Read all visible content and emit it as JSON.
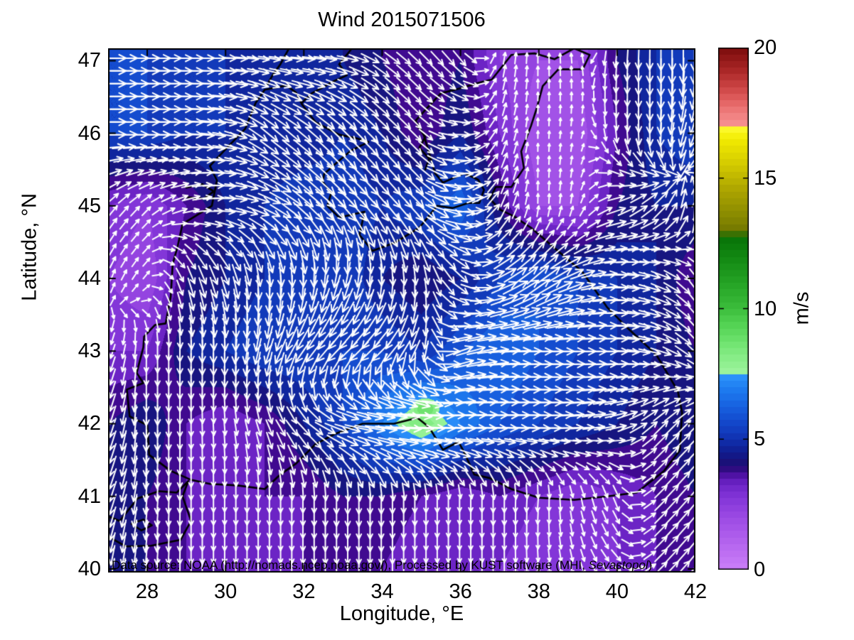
{
  "title": "Wind 2015071506",
  "xlabel": "Longitude, °E",
  "ylabel": "Latitude, °N",
  "annotation": {
    "prefix": "Data source: NOAA (http://nomads.ncep.noaa.gov/), Processed by KUST software (MHI, ",
    "italic": "Sevastopol",
    "suffix": ")"
  },
  "axes": {
    "xticks": [
      28,
      30,
      32,
      34,
      36,
      38,
      40,
      42
    ],
    "yticks": [
      40,
      41,
      42,
      43,
      44,
      45,
      46,
      47
    ],
    "xlim": [
      27,
      42
    ],
    "ylim": [
      39.95,
      47.17
    ],
    "grid": false
  },
  "colorbar": {
    "label": "m/s",
    "ticks": [
      0,
      5,
      10,
      15,
      20
    ],
    "min": 0,
    "max": 20
  },
  "chart_data": {
    "type": "heatmap",
    "subtype": "wind-speed-filled-contours-with-quiver-arrows",
    "title": "Wind 2015071506",
    "xlabel": "Longitude, °E",
    "ylabel": "Latitude, °N",
    "units": "m/s",
    "xlim": [
      27,
      42
    ],
    "ylim": [
      39.95,
      47.17
    ],
    "value_range": [
      0,
      20
    ],
    "contour_step": 0.5,
    "lon": [
      27,
      28,
      29,
      30,
      31,
      32,
      33,
      34,
      35,
      36,
      37,
      38,
      39,
      40,
      41,
      42
    ],
    "lat": [
      47,
      46,
      45,
      44,
      43,
      42,
      41,
      40
    ],
    "speed_ms": [
      [
        5.5,
        5.5,
        5.0,
        5.0,
        4.5,
        5.0,
        4.5,
        4.0,
        3.5,
        4.0,
        2.5,
        2.0,
        2.0,
        4.0,
        5.0,
        5.5
      ],
      [
        5.5,
        5.5,
        5.0,
        5.0,
        4.5,
        4.5,
        5.0,
        4.5,
        3.5,
        4.5,
        3.0,
        1.5,
        1.5,
        3.5,
        5.0,
        5.5
      ],
      [
        3.0,
        2.5,
        3.5,
        4.5,
        5.0,
        5.5,
        5.5,
        5.0,
        5.5,
        6.5,
        4.0,
        2.0,
        2.0,
        4.0,
        4.5,
        4.5
      ],
      [
        2.5,
        2.0,
        4.0,
        4.5,
        5.0,
        5.0,
        5.5,
        4.5,
        4.0,
        4.5,
        5.5,
        6.0,
        5.5,
        5.0,
        4.5,
        3.5
      ],
      [
        3.0,
        3.0,
        4.5,
        5.0,
        5.5,
        5.5,
        5.5,
        5.5,
        5.0,
        6.0,
        6.5,
        6.0,
        5.5,
        5.0,
        4.5,
        4.0
      ],
      [
        4.0,
        4.5,
        3.5,
        3.0,
        3.5,
        4.5,
        5.5,
        7.0,
        8.5,
        7.0,
        6.0,
        5.5,
        5.0,
        4.5,
        4.0,
        4.5
      ],
      [
        4.5,
        4.0,
        3.5,
        3.0,
        3.5,
        3.5,
        4.0,
        4.0,
        3.5,
        3.0,
        3.5,
        3.0,
        2.5,
        3.0,
        3.5,
        4.0
      ],
      [
        4.0,
        4.0,
        3.5,
        3.5,
        3.0,
        3.5,
        3.5,
        3.5,
        3.0,
        3.0,
        3.0,
        2.5,
        2.5,
        3.0,
        3.5,
        4.0
      ]
    ],
    "dir_toward_deg": [
      [
        90,
        90,
        90,
        90,
        100,
        95,
        100,
        125,
        135,
        140,
        10,
        0,
        355,
        185,
        180,
        180
      ],
      [
        90,
        90,
        90,
        100,
        130,
        130,
        135,
        135,
        135,
        90,
        20,
        0,
        10,
        175,
        180,
        200
      ],
      [
        40,
        45,
        70,
        90,
        110,
        130,
        135,
        140,
        135,
        95,
        25,
        0,
        10,
        70,
        45,
        0
      ],
      [
        20,
        40,
        160,
        160,
        175,
        180,
        195,
        180,
        175,
        135,
        65,
        50,
        70,
        90,
        110,
        145
      ],
      [
        200,
        180,
        180,
        180,
        195,
        215,
        225,
        225,
        200,
        70,
        85,
        90,
        90,
        90,
        105,
        135
      ],
      [
        200,
        180,
        180,
        175,
        160,
        135,
        105,
        95,
        90,
        90,
        90,
        90,
        85,
        75,
        45,
        45
      ],
      [
        200,
        185,
        180,
        180,
        180,
        180,
        180,
        180,
        180,
        180,
        180,
        185,
        170,
        160,
        45,
        40
      ],
      [
        190,
        185,
        180,
        180,
        180,
        180,
        180,
        180,
        180,
        180,
        180,
        175,
        165,
        135,
        45,
        40
      ]
    ],
    "speed_maximum": {
      "lon": 35.1,
      "lat": 42.2,
      "value_ms": 9
    },
    "colormap_stops": [
      [
        0.0,
        "#CB80F8"
      ],
      [
        0.5,
        "#C173F4"
      ],
      [
        1.0,
        "#B566EF"
      ],
      [
        1.5,
        "#A958EA"
      ],
      [
        2.0,
        "#9C4BE4"
      ],
      [
        2.5,
        "#8C3DDD"
      ],
      [
        3.0,
        "#7A2ED2"
      ],
      [
        3.5,
        "#5F1BB8"
      ],
      [
        3.75,
        "#400A90"
      ],
      [
        4.0,
        "#1E0E72"
      ],
      [
        4.5,
        "#101C8E"
      ],
      [
        5.0,
        "#1130AE"
      ],
      [
        5.5,
        "#1343C6"
      ],
      [
        6.0,
        "#1556D8"
      ],
      [
        6.5,
        "#1A6BE6"
      ],
      [
        7.0,
        "#1F80F2"
      ],
      [
        7.45,
        "#2E95FC"
      ],
      [
        7.5,
        "#A0F5A0"
      ],
      [
        8.0,
        "#8DEF8D"
      ],
      [
        8.5,
        "#79E879"
      ],
      [
        9.0,
        "#63DC63"
      ],
      [
        9.5,
        "#50D050"
      ],
      [
        10.0,
        "#3CBE3C"
      ],
      [
        11.0,
        "#25A325"
      ],
      [
        12.0,
        "#128812"
      ],
      [
        12.85,
        "#067006"
      ],
      [
        12.9,
        "#6F7300"
      ],
      [
        13.5,
        "#878900"
      ],
      [
        14.5,
        "#ABA300"
      ],
      [
        15.5,
        "#D2C900"
      ],
      [
        16.5,
        "#F2EC00"
      ],
      [
        16.95,
        "#FDFB30"
      ],
      [
        17.0,
        "#F79292"
      ],
      [
        17.5,
        "#F07E7E"
      ],
      [
        18.0,
        "#E26060"
      ],
      [
        18.5,
        "#CC4444"
      ],
      [
        19.0,
        "#B12C2C"
      ],
      [
        19.5,
        "#971B1B"
      ],
      [
        20.0,
        "#7C0D0D"
      ]
    ],
    "arrow_color": "#FFFFFF",
    "coastline_color": "#000000",
    "coastlines": [
      [
        [
          29.1,
          41.23
        ],
        [
          28.6,
          41.35
        ],
        [
          28.05,
          41.57
        ],
        [
          28.0,
          41.98
        ],
        [
          27.55,
          42.1
        ],
        [
          27.48,
          42.47
        ],
        [
          27.9,
          42.56
        ],
        [
          27.73,
          42.7
        ],
        [
          27.9,
          43.05
        ],
        [
          27.92,
          43.2
        ],
        [
          28.2,
          43.36
        ],
        [
          28.47,
          43.38
        ],
        [
          28.6,
          43.75
        ],
        [
          28.65,
          44.2
        ],
        [
          28.78,
          44.45
        ],
        [
          28.9,
          44.75
        ],
        [
          29.35,
          44.9
        ],
        [
          29.65,
          45.0
        ],
        [
          29.78,
          45.35
        ],
        [
          29.6,
          45.55
        ],
        [
          30.0,
          45.78
        ],
        [
          30.5,
          46.06
        ],
        [
          30.77,
          46.42
        ],
        [
          31.0,
          46.6
        ],
        [
          31.3,
          46.63
        ],
        [
          31.55,
          46.66
        ],
        [
          31.8,
          46.56
        ],
        [
          31.95,
          46.4
        ],
        [
          32.3,
          46.15
        ],
        [
          32.55,
          46.08
        ],
        [
          32.9,
          45.98
        ],
        [
          33.35,
          45.93
        ],
        [
          33.65,
          45.88
        ],
        [
          33.2,
          45.76
        ],
        [
          32.85,
          45.6
        ],
        [
          32.52,
          45.44
        ],
        [
          32.48,
          45.33
        ],
        [
          32.7,
          45.18
        ],
        [
          32.6,
          45.0
        ],
        [
          32.9,
          44.84
        ],
        [
          33.55,
          44.92
        ],
        [
          33.42,
          44.6
        ],
        [
          33.75,
          44.38
        ],
        [
          34.35,
          44.5
        ],
        [
          34.95,
          44.7
        ],
        [
          35.4,
          45.0
        ],
        [
          35.8,
          44.97
        ],
        [
          36.2,
          45.04
        ],
        [
          36.48,
          45.04
        ],
        [
          36.6,
          45.22
        ],
        [
          36.45,
          45.36
        ],
        [
          36.1,
          45.45
        ],
        [
          35.55,
          45.32
        ],
        [
          35.35,
          45.45
        ],
        [
          35.05,
          46.0
        ],
        [
          34.85,
          46.17
        ],
        [
          35.1,
          46.32
        ],
        [
          35.5,
          46.55
        ],
        [
          36.0,
          46.62
        ],
        [
          36.5,
          46.7
        ],
        [
          36.8,
          46.74
        ],
        [
          37.3,
          47.08
        ],
        [
          37.9,
          47.1
        ],
        [
          38.4,
          47.02
        ],
        [
          38.9,
          47.17
        ],
        [
          39.3,
          47.08
        ],
        [
          39.12,
          46.88
        ],
        [
          38.5,
          46.88
        ],
        [
          38.1,
          46.65
        ],
        [
          37.95,
          46.35
        ],
        [
          37.8,
          46.1
        ],
        [
          37.55,
          45.75
        ],
        [
          37.62,
          45.52
        ],
        [
          37.3,
          45.26
        ],
        [
          36.9,
          45.26
        ],
        [
          36.75,
          45.1
        ],
        [
          37.0,
          44.95
        ],
        [
          37.35,
          44.86
        ],
        [
          37.8,
          44.7
        ],
        [
          38.55,
          44.35
        ],
        [
          39.1,
          44.1
        ],
        [
          39.75,
          43.6
        ],
        [
          40.3,
          43.3
        ],
        [
          41.0,
          42.95
        ],
        [
          41.55,
          42.45
        ],
        [
          41.66,
          42.15
        ],
        [
          41.6,
          41.63
        ],
        [
          41.2,
          41.35
        ],
        [
          40.5,
          41.05
        ],
        [
          39.75,
          41.0
        ],
        [
          38.9,
          40.95
        ],
        [
          38.0,
          40.98
        ],
        [
          37.3,
          41.1
        ],
        [
          36.75,
          41.25
        ],
        [
          36.35,
          41.3
        ],
        [
          36.1,
          41.6
        ],
        [
          35.95,
          41.75
        ],
        [
          35.55,
          41.64
        ],
        [
          35.2,
          41.95
        ],
        [
          34.9,
          42.08
        ],
        [
          34.3,
          42.0
        ],
        [
          33.5,
          42.0
        ],
        [
          32.8,
          41.86
        ],
        [
          32.3,
          41.72
        ],
        [
          31.8,
          41.45
        ],
        [
          31.4,
          41.3
        ],
        [
          31.0,
          41.1
        ],
        [
          30.3,
          41.15
        ],
        [
          29.6,
          41.17
        ],
        [
          29.1,
          41.23
        ]
      ],
      [
        [
          29.05,
          41.21
        ],
        [
          28.9,
          41.0
        ],
        [
          29.12,
          40.66
        ],
        [
          28.85,
          40.4
        ],
        [
          28.1,
          40.32
        ],
        [
          27.45,
          40.31
        ],
        [
          27.02,
          40.44
        ],
        [
          27.02,
          40.72
        ],
        [
          27.3,
          40.66
        ],
        [
          27.75,
          40.97
        ],
        [
          28.3,
          41.07
        ],
        [
          28.75,
          41.05
        ],
        [
          29.05,
          41.21
        ]
      ],
      [
        [
          27.6,
          40.62
        ],
        [
          27.9,
          40.68
        ],
        [
          28.12,
          40.6
        ],
        [
          27.85,
          40.53
        ],
        [
          27.6,
          40.62
        ]
      ],
      [
        [
          33.2,
          47.15
        ],
        [
          32.9,
          46.95
        ],
        [
          33.1,
          46.8
        ],
        [
          32.7,
          46.7
        ],
        [
          32.45,
          46.62
        ],
        [
          32.2,
          46.55
        ],
        [
          31.95,
          46.42
        ]
      ],
      [
        [
          31.6,
          47.15
        ],
        [
          31.4,
          46.95
        ],
        [
          31.2,
          46.8
        ],
        [
          31.05,
          46.65
        ]
      ],
      [
        [
          34.9,
          46.1
        ],
        [
          35.1,
          45.95
        ],
        [
          34.95,
          45.8
        ],
        [
          35.2,
          45.65
        ],
        [
          35.1,
          45.5
        ]
      ],
      [
        [
          29.0,
          45.25
        ],
        [
          29.4,
          45.3
        ],
        [
          29.7,
          45.2
        ],
        [
          29.45,
          45.1
        ],
        [
          29.0,
          45.12
        ]
      ]
    ]
  }
}
